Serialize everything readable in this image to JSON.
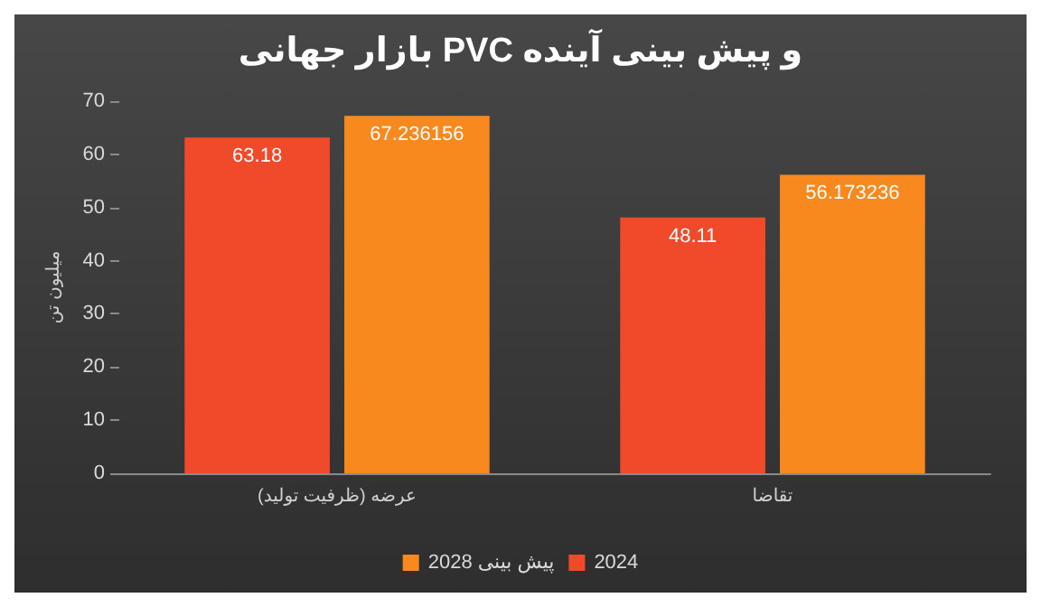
{
  "chart_data": {
    "type": "bar",
    "title": "بازار جهانی PVC و پیش بینی آینده",
    "ylabel": "میلیون تن",
    "categories": [
      "عرضه (ظرفیت تولید)",
      "تقاضا"
    ],
    "series": [
      {
        "name": "2024",
        "color": "#f04a2a",
        "values": [
          63.18,
          48.11
        ]
      },
      {
        "name": "پیش بینی 2028",
        "color": "#f7891f",
        "values": [
          67.236156,
          56.173236
        ]
      }
    ],
    "ylim": [
      0,
      70
    ],
    "yticks": [
      0,
      10,
      20,
      30,
      40,
      50,
      60,
      70
    ],
    "grid": false,
    "legend": "bottom",
    "data_labels": true
  }
}
